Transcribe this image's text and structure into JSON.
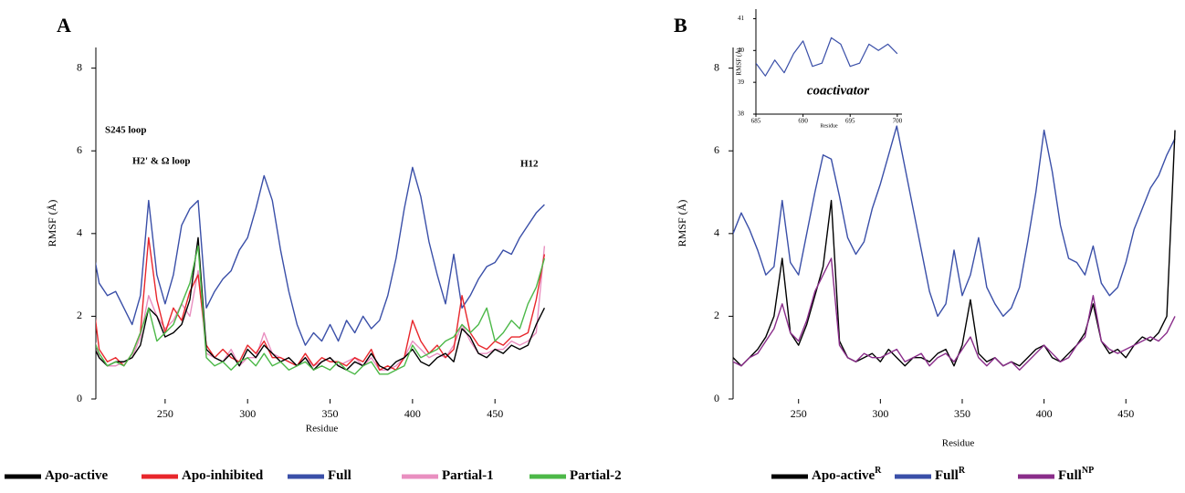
{
  "chart_data": [
    {
      "type": "line",
      "title": "A",
      "x_label": "Residue",
      "y_label": "RMSF (Å)",
      "annotations": [
        "S245 loop",
        "H2' & Ω loop",
        "H12"
      ],
      "xlim": [
        208,
        482
      ],
      "ylim": [
        0,
        8.5
      ],
      "xticks": [
        250,
        300,
        350,
        400,
        450
      ],
      "yticks": [
        0,
        2,
        4,
        6,
        8
      ],
      "x": [
        205,
        210,
        215,
        220,
        225,
        230,
        235,
        240,
        245,
        250,
        255,
        260,
        265,
        270,
        275,
        280,
        285,
        290,
        295,
        300,
        305,
        310,
        315,
        320,
        325,
        330,
        335,
        340,
        345,
        350,
        355,
        360,
        365,
        370,
        375,
        380,
        385,
        390,
        395,
        400,
        405,
        410,
        415,
        420,
        425,
        430,
        435,
        440,
        445,
        450,
        455,
        460,
        465,
        470,
        475,
        480
      ],
      "series": [
        {
          "name": "Full",
          "color": "#3a4fa8",
          "values": [
            3.9,
            2.8,
            2.5,
            2.6,
            2.2,
            1.8,
            2.5,
            4.8,
            3.0,
            2.3,
            3.0,
            4.2,
            4.6,
            4.8,
            2.2,
            2.6,
            2.9,
            3.1,
            3.6,
            3.9,
            4.6,
            5.4,
            4.8,
            3.6,
            2.6,
            1.8,
            1.3,
            1.6,
            1.4,
            1.8,
            1.4,
            1.9,
            1.6,
            2.0,
            1.7,
            1.9,
            2.5,
            3.4,
            4.6,
            5.6,
            4.9,
            3.8,
            3.0,
            2.3,
            3.5,
            2.2,
            2.5,
            2.9,
            3.2,
            3.3,
            3.6,
            3.5,
            3.9,
            4.2,
            4.5,
            4.7
          ]
        },
        {
          "name": "Partial-1",
          "color": "#e98fc0",
          "values": [
            1.8,
            1.0,
            0.8,
            0.8,
            0.9,
            1.0,
            1.5,
            2.5,
            2.0,
            1.7,
            1.9,
            2.3,
            2.0,
            3.1,
            1.1,
            1.0,
            0.9,
            1.2,
            0.8,
            1.0,
            1.0,
            1.6,
            1.1,
            1.0,
            0.9,
            0.8,
            1.0,
            0.8,
            0.9,
            1.0,
            0.8,
            0.9,
            1.0,
            0.8,
            1.0,
            0.7,
            0.7,
            0.8,
            1.0,
            1.4,
            1.2,
            1.0,
            1.1,
            1.0,
            1.3,
            1.8,
            1.4,
            1.1,
            1.1,
            1.2,
            1.2,
            1.4,
            1.3,
            1.4,
            1.6,
            3.7
          ]
        },
        {
          "name": "Apo-inhibited",
          "color": "#e8262b",
          "values": [
            2.8,
            1.2,
            0.9,
            1.0,
            0.8,
            1.1,
            1.6,
            3.9,
            2.4,
            1.6,
            2.2,
            1.9,
            2.6,
            3.0,
            1.3,
            1.0,
            1.2,
            1.0,
            0.9,
            1.3,
            1.1,
            1.4,
            1.0,
            1.0,
            0.9,
            0.8,
            1.1,
            0.8,
            1.0,
            0.9,
            0.9,
            0.8,
            1.0,
            0.9,
            1.2,
            0.7,
            0.8,
            0.7,
            1.0,
            1.9,
            1.4,
            1.1,
            1.3,
            1.0,
            1.2,
            2.5,
            1.6,
            1.3,
            1.2,
            1.4,
            1.3,
            1.5,
            1.5,
            1.6,
            2.4,
            3.5
          ]
        },
        {
          "name": "Apo-active",
          "color": "#000000",
          "values": [
            1.4,
            1.0,
            0.8,
            0.9,
            0.9,
            1.0,
            1.3,
            2.2,
            2.0,
            1.5,
            1.6,
            1.8,
            2.4,
            3.9,
            1.2,
            1.0,
            0.9,
            1.1,
            0.8,
            1.2,
            1.0,
            1.3,
            1.1,
            0.9,
            1.0,
            0.8,
            1.0,
            0.7,
            0.9,
            1.0,
            0.8,
            0.7,
            0.9,
            0.8,
            1.1,
            0.8,
            0.7,
            0.9,
            1.0,
            1.2,
            0.9,
            0.8,
            1.0,
            1.1,
            0.9,
            1.7,
            1.5,
            1.1,
            1.0,
            1.2,
            1.1,
            1.3,
            1.2,
            1.3,
            1.8,
            2.2
          ]
        },
        {
          "name": "Partial-2",
          "color": "#4cb848",
          "values": [
            1.6,
            1.1,
            0.8,
            0.9,
            0.8,
            1.1,
            1.6,
            2.2,
            1.4,
            1.6,
            1.8,
            2.3,
            2.8,
            3.7,
            1.0,
            0.8,
            0.9,
            0.7,
            0.9,
            1.0,
            0.8,
            1.1,
            0.8,
            0.9,
            0.7,
            0.8,
            0.9,
            0.7,
            0.8,
            0.7,
            0.9,
            0.7,
            0.6,
            0.8,
            0.9,
            0.6,
            0.6,
            0.7,
            0.8,
            1.3,
            1.0,
            1.1,
            1.2,
            1.4,
            1.5,
            1.8,
            1.6,
            1.8,
            2.2,
            1.4,
            1.6,
            1.9,
            1.7,
            2.3,
            2.7,
            3.4
          ]
        }
      ]
    },
    {
      "type": "line",
      "title": "B",
      "x_label": "Residue",
      "y_label": "RMSF (Å)",
      "xlim": [
        210,
        485
      ],
      "ylim": [
        0,
        8.5
      ],
      "xticks": [
        250,
        300,
        350,
        400,
        450
      ],
      "yticks": [
        0,
        2,
        4,
        6,
        8
      ],
      "x": [
        205,
        210,
        215,
        220,
        225,
        230,
        235,
        240,
        245,
        250,
        255,
        260,
        265,
        270,
        275,
        280,
        285,
        290,
        295,
        300,
        305,
        310,
        315,
        320,
        325,
        330,
        335,
        340,
        345,
        350,
        355,
        360,
        365,
        370,
        375,
        380,
        385,
        390,
        395,
        400,
        405,
        410,
        415,
        420,
        425,
        430,
        435,
        440,
        445,
        450,
        455,
        460,
        465,
        470,
        475,
        480
      ],
      "series": [
        {
          "name": "Full",
          "sup": "R",
          "color": "#3a4fa8",
          "values": [
            4.6,
            4.0,
            4.5,
            4.1,
            3.6,
            3.0,
            3.2,
            4.8,
            3.3,
            3.0,
            4.0,
            5.0,
            5.9,
            5.8,
            4.9,
            3.9,
            3.5,
            3.8,
            4.6,
            5.2,
            5.9,
            6.6,
            5.6,
            4.6,
            3.6,
            2.6,
            2.0,
            2.3,
            3.6,
            2.5,
            3.0,
            3.9,
            2.7,
            2.3,
            2.0,
            2.2,
            2.7,
            3.8,
            5.0,
            6.5,
            5.5,
            4.2,
            3.4,
            3.3,
            3.0,
            3.7,
            2.8,
            2.5,
            2.7,
            3.3,
            4.1,
            4.6,
            5.1,
            5.4,
            5.9,
            6.3
          ]
        },
        {
          "name": "Apo-active",
          "sup": "R",
          "color": "#000000",
          "values": [
            1.9,
            1.0,
            0.8,
            1.0,
            1.2,
            1.5,
            2.0,
            3.4,
            1.6,
            1.3,
            1.8,
            2.5,
            3.2,
            4.8,
            1.4,
            1.0,
            0.9,
            1.0,
            1.1,
            0.9,
            1.2,
            1.0,
            0.8,
            1.0,
            1.0,
            0.9,
            1.1,
            1.2,
            0.8,
            1.3,
            2.4,
            1.1,
            0.9,
            1.0,
            0.8,
            0.9,
            0.8,
            1.0,
            1.2,
            1.3,
            1.0,
            0.9,
            1.1,
            1.3,
            1.6,
            2.3,
            1.4,
            1.1,
            1.2,
            1.0,
            1.3,
            1.5,
            1.4,
            1.6,
            2.0,
            6.5
          ]
        },
        {
          "name": "Full",
          "sup": "NP",
          "color": "#8a2d8a",
          "values": [
            1.7,
            0.9,
            0.8,
            1.0,
            1.1,
            1.4,
            1.7,
            2.3,
            1.6,
            1.4,
            1.9,
            2.6,
            3.0,
            3.4,
            1.3,
            1.0,
            0.9,
            1.1,
            1.0,
            1.0,
            1.1,
            1.2,
            0.9,
            1.0,
            1.1,
            0.8,
            1.0,
            1.1,
            0.9,
            1.2,
            1.5,
            1.0,
            0.8,
            1.0,
            0.8,
            0.9,
            0.7,
            0.9,
            1.1,
            1.3,
            1.1,
            0.9,
            1.0,
            1.3,
            1.5,
            2.5,
            1.4,
            1.2,
            1.1,
            1.2,
            1.3,
            1.4,
            1.5,
            1.4,
            1.6,
            2.0
          ]
        }
      ]
    },
    {
      "type": "line",
      "x_label": "Residue",
      "y_label": "RMSF (Å)",
      "annotations": [
        "coactivator"
      ],
      "xlim": [
        685,
        700.5
      ],
      "ylim": [
        38,
        41.3
      ],
      "xticks": [
        685,
        690,
        695,
        700
      ],
      "yticks": [
        38,
        39,
        40,
        41
      ],
      "x": [
        685,
        686,
        687,
        688,
        689,
        690,
        691,
        692,
        693,
        694,
        695,
        696,
        697,
        698,
        699,
        700
      ],
      "series": [
        {
          "color": "#3a4fa8",
          "values": [
            39.6,
            39.2,
            39.7,
            39.3,
            39.9,
            40.3,
            39.5,
            39.6,
            40.4,
            40.2,
            39.5,
            39.6,
            40.2,
            40.0,
            40.2,
            39.9
          ]
        }
      ]
    }
  ]
}
